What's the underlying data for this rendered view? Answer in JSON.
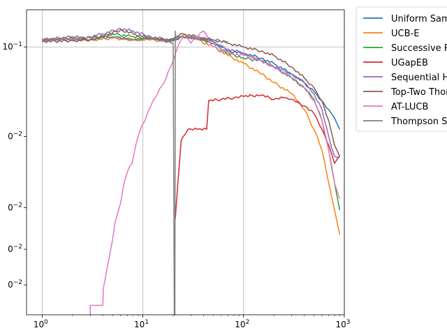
{
  "chart_data": {
    "type": "line",
    "title": "",
    "xlabel": "",
    "ylabel": "",
    "x_scale": "log",
    "y_scale": "log",
    "xlim": [
      0.7,
      1000
    ],
    "ylim": [
      0.000102,
      0.26
    ],
    "grid": true,
    "legend_placement": "outside right",
    "x_ticks": [
      {
        "value": 1,
        "base": "10",
        "exp": "0"
      },
      {
        "value": 10,
        "base": "10",
        "exp": "1"
      },
      {
        "value": 100,
        "base": "10",
        "exp": "2"
      },
      {
        "value": 1000,
        "base": "10",
        "exp": "3"
      }
    ],
    "y_ticks": [
      {
        "value": 0.1,
        "base": "10",
        "exp": "−1"
      },
      {
        "value": 0.01,
        "base": "0",
        "exp": "−2"
      },
      {
        "value": 0.0016,
        "base": "0",
        "exp": "−2"
      },
      {
        "value": 0.00055,
        "base": "0",
        "exp": "−2"
      },
      {
        "value": 0.00022,
        "base": "0",
        "exp": "−2"
      }
    ],
    "series": [
      {
        "name": "Uniform Sampling",
        "color": "#1f77b4",
        "x": [
          1,
          2,
          3,
          5,
          8,
          12,
          18,
          25,
          35,
          50,
          70,
          100,
          150,
          200,
          300,
          400,
          500,
          600,
          700,
          800,
          900
        ],
        "y": [
          0.12,
          0.125,
          0.12,
          0.13,
          0.12,
          0.125,
          0.115,
          0.13,
          0.125,
          0.115,
          0.09,
          0.085,
          0.075,
          0.065,
          0.05,
          0.04,
          0.032,
          0.025,
          0.02,
          0.016,
          0.012
        ]
      },
      {
        "name": "UCB-E",
        "color": "#ff7f0e",
        "x": [
          1,
          2,
          3,
          5,
          8,
          12,
          18,
          25,
          35,
          50,
          70,
          100,
          150,
          200,
          300,
          400,
          500,
          600,
          700,
          800,
          900
        ],
        "y": [
          0.12,
          0.122,
          0.12,
          0.125,
          0.12,
          0.12,
          0.115,
          0.135,
          0.12,
          0.1,
          0.08,
          0.065,
          0.05,
          0.04,
          0.03,
          0.02,
          0.012,
          0.007,
          0.003,
          0.0015,
          0.0008
        ]
      },
      {
        "name": "Successive Rejects",
        "color": "#2ca02c",
        "x": [
          1,
          2,
          3,
          5,
          8,
          12,
          18,
          25,
          35,
          50,
          70,
          100,
          150,
          200,
          300,
          400,
          500,
          600,
          700,
          800,
          900
        ],
        "y": [
          0.12,
          0.13,
          0.125,
          0.14,
          0.13,
          0.125,
          0.115,
          0.13,
          0.125,
          0.11,
          0.085,
          0.075,
          0.07,
          0.06,
          0.045,
          0.035,
          0.026,
          0.015,
          0.007,
          0.003,
          0.0015
        ]
      },
      {
        "name": "UGapEB",
        "color": "#d62728",
        "x": [
          21,
          22,
          24,
          28,
          35,
          43,
          45,
          60,
          80,
          100,
          150,
          200,
          250,
          300,
          400,
          500,
          600,
          700,
          800,
          900
        ],
        "y": [
          0.0012,
          0.0025,
          0.009,
          0.012,
          0.012,
          0.012,
          0.025,
          0.026,
          0.027,
          0.028,
          0.029,
          0.026,
          0.027,
          0.026,
          0.022,
          0.018,
          0.012,
          0.008,
          0.005,
          0.006
        ]
      },
      {
        "name": "Sequential Halving",
        "color": "#9467bd",
        "x": [
          1,
          2,
          3,
          4,
          6,
          8,
          12,
          18,
          25,
          35,
          50,
          70,
          100,
          150,
          200,
          300,
          400,
          500,
          600,
          700,
          800,
          900
        ],
        "y": [
          0.12,
          0.122,
          0.13,
          0.14,
          0.16,
          0.15,
          0.13,
          0.12,
          0.13,
          0.125,
          0.11,
          0.095,
          0.085,
          0.07,
          0.06,
          0.05,
          0.04,
          0.03,
          0.02,
          0.01,
          0.006,
          0.006
        ]
      },
      {
        "name": "Top-Two Thompson Sampling",
        "color": "#8c564b",
        "x": [
          1,
          2,
          3,
          4,
          6,
          8,
          12,
          18,
          25,
          35,
          50,
          70,
          100,
          150,
          200,
          300,
          400,
          500,
          600,
          700,
          800,
          900
        ],
        "y": [
          0.115,
          0.117,
          0.12,
          0.13,
          0.155,
          0.14,
          0.125,
          0.12,
          0.14,
          0.13,
          0.12,
          0.11,
          0.1,
          0.09,
          0.08,
          0.06,
          0.045,
          0.035,
          0.025,
          0.015,
          0.008,
          0.006
        ]
      },
      {
        "name": "AT-LUCB",
        "color": "#e377c2",
        "x": [
          3,
          3,
          4,
          4.05,
          5,
          5.3,
          6,
          6.5,
          7,
          7.8,
          8.5,
          9.5,
          10.5,
          12,
          14,
          17,
          20,
          23,
          26,
          30,
          35,
          40,
          50,
          70,
          100,
          150,
          200,
          300,
          400,
          500,
          600,
          700,
          800,
          900
        ],
        "y": [
          0.0001,
          0.00013,
          0.00013,
          0.0002,
          0.0007,
          0.0011,
          0.0018,
          0.003,
          0.004,
          0.005,
          0.008,
          0.012,
          0.015,
          0.022,
          0.03,
          0.045,
          0.07,
          0.11,
          0.13,
          0.11,
          0.13,
          0.15,
          0.1,
          0.085,
          0.08,
          0.07,
          0.06,
          0.045,
          0.035,
          0.025,
          0.015,
          0.007,
          0.003,
          0.002
        ]
      },
      {
        "name": "Thompson Sampling",
        "color": "#7f7f7f",
        "x": [
          1,
          2,
          3,
          5,
          8,
          12,
          18,
          20,
          20.5,
          20.8,
          21,
          21.2,
          21.5,
          25,
          35,
          50,
          70
        ],
        "y": [
          0.12,
          0.13,
          0.125,
          0.13,
          0.12,
          0.125,
          0.115,
          0.11,
          9e-05,
          9e-05,
          0.15,
          0.12,
          0.12,
          0.13,
          0.125,
          0.12,
          0.115
        ]
      }
    ]
  }
}
